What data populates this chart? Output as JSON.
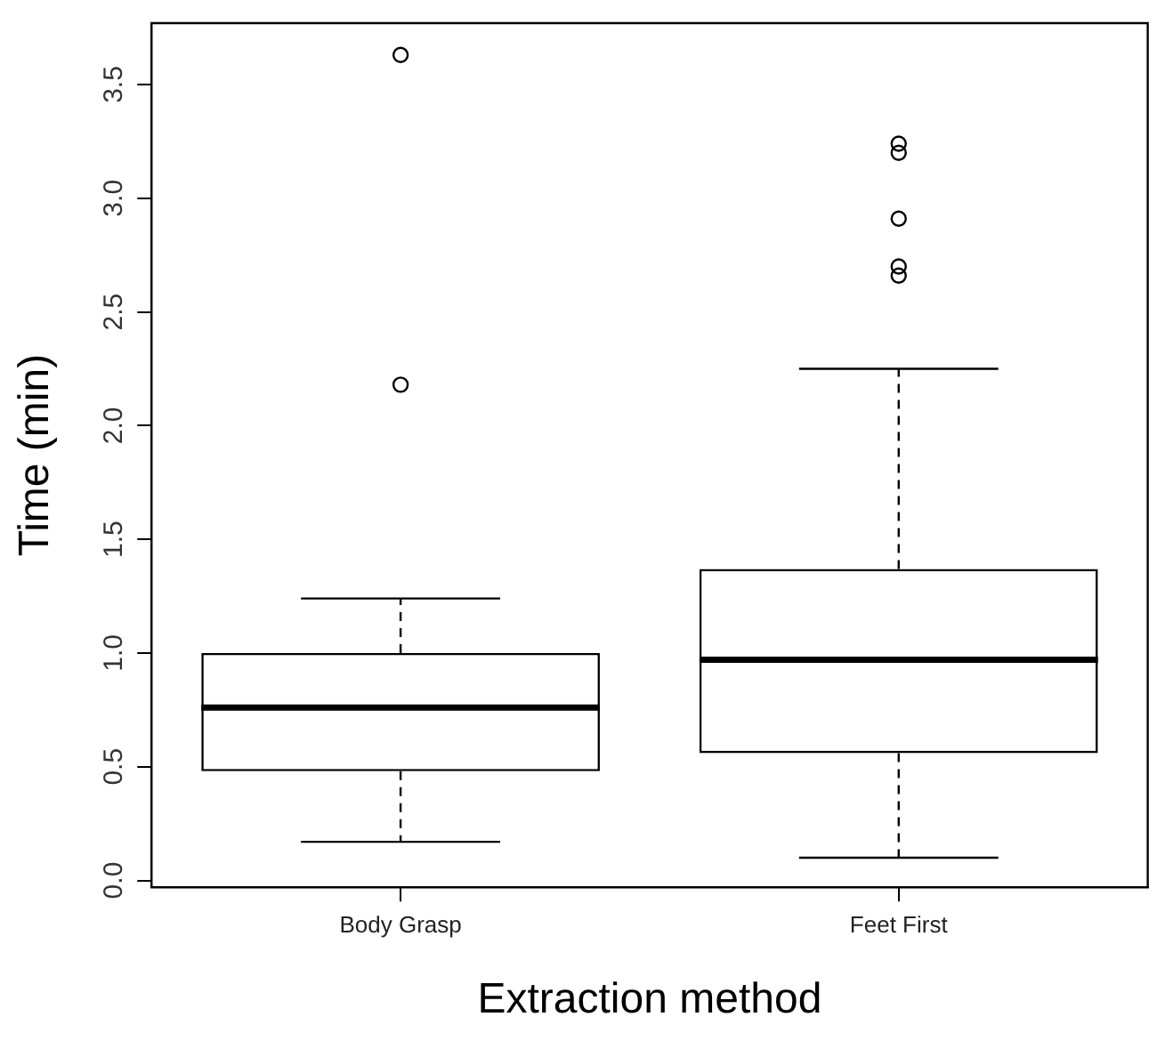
{
  "chart_data": {
    "type": "box",
    "xlabel": "Extraction method",
    "ylabel": "Time (min)",
    "categories": [
      "Body Grasp",
      "Feet First"
    ],
    "boxes": [
      {
        "low": 0.17,
        "q1": 0.48,
        "median": 0.76,
        "q3": 1.0,
        "high": 1.24,
        "outliers": [
          2.18,
          3.63
        ]
      },
      {
        "low": 0.1,
        "q1": 0.56,
        "median": 0.97,
        "q3": 1.37,
        "high": 2.25,
        "outliers": [
          2.66,
          2.7,
          2.91,
          3.2,
          3.24
        ]
      }
    ],
    "color": "#000000",
    "ylim": [
      -0.03,
      3.77
    ],
    "yticks": [
      {
        "value": 0,
        "label": "0.0"
      },
      {
        "value": 0.5,
        "label": "0.5"
      },
      {
        "value": 1,
        "label": "1.0"
      },
      {
        "value": 1.5,
        "label": "1.5"
      },
      {
        "value": 2,
        "label": "2.0"
      },
      {
        "value": 2.5,
        "label": "2.5"
      },
      {
        "value": 3,
        "label": "3.0"
      },
      {
        "value": 3.5,
        "label": "3.5"
      }
    ],
    "grid": false,
    "legend": false,
    "marker": "circle"
  }
}
